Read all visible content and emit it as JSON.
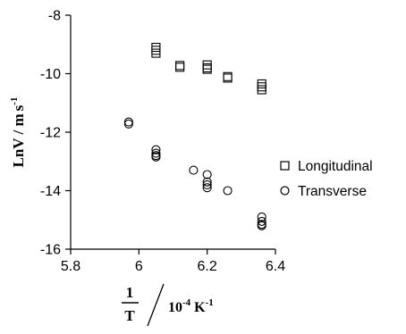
{
  "chart_data": {
    "type": "scatter",
    "title": "",
    "xlabel": {
      "numerator": "1",
      "denominator": "T",
      "unit_base": "10",
      "unit_exponent": "-4",
      "unit_symbol": "K",
      "unit_symbol_exponent": "-1"
    },
    "ylabel": {
      "quantity": "LnV",
      "separator": " / ",
      "unit_m": "m",
      "unit_s": "s",
      "unit_s_exponent": "-1"
    },
    "xlim": [
      5.8,
      6.4
    ],
    "ylim": [
      -16,
      -8
    ],
    "xticks": [
      5.8,
      6.0,
      6.2,
      6.4
    ],
    "xtick_labels": [
      "5.8",
      "6",
      "6.2",
      "6.4"
    ],
    "yticks": [
      -16,
      -14,
      -12,
      -10,
      -8
    ],
    "ytick_labels": [
      "-16",
      "-14",
      "-12",
      "-10",
      "-8"
    ],
    "grid": false,
    "legend_position": "right",
    "series": [
      {
        "name": "Longitudinal",
        "marker": "square",
        "x": [
          6.05,
          6.05,
          6.05,
          6.12,
          6.12,
          6.2,
          6.2,
          6.2,
          6.26,
          6.26,
          6.36,
          6.36,
          6.36
        ],
        "y": [
          -9.1,
          -9.2,
          -9.3,
          -9.72,
          -9.78,
          -9.7,
          -9.8,
          -9.85,
          -10.1,
          -10.15,
          -10.35,
          -10.45,
          -10.55
        ]
      },
      {
        "name": "Transverse",
        "marker": "circle",
        "x": [
          5.97,
          5.97,
          6.05,
          6.05,
          6.05,
          6.05,
          6.16,
          6.2,
          6.2,
          6.2,
          6.2,
          6.26,
          6.36,
          6.36,
          6.36,
          6.36
        ],
        "y": [
          -11.65,
          -11.72,
          -12.6,
          -12.72,
          -12.8,
          -12.85,
          -13.3,
          -13.45,
          -13.7,
          -13.8,
          -13.9,
          -14.0,
          -14.9,
          -15.05,
          -15.15,
          -15.2
        ]
      }
    ]
  }
}
